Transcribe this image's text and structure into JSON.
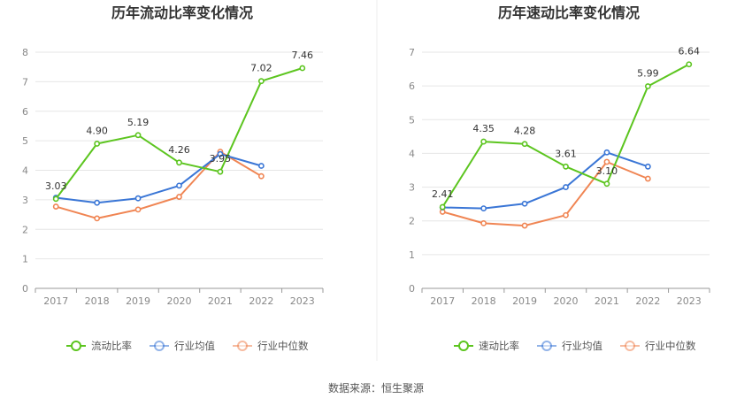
{
  "source_label": "数据来源：恒生聚源",
  "chart_data": [
    {
      "type": "line",
      "title": "历年流动比率变化情况",
      "categories": [
        "2017",
        "2018",
        "2019",
        "2020",
        "2021",
        "2022",
        "2023"
      ],
      "ylim": [
        0,
        8
      ],
      "yticks": [
        0,
        1,
        2,
        3,
        4,
        5,
        6,
        7,
        8
      ],
      "grid": true,
      "legend_position": "bottom",
      "series": [
        {
          "name": "流动比率",
          "color": "#5cc51f",
          "values": [
            3.03,
            4.9,
            5.19,
            4.26,
            3.95,
            7.02,
            7.46
          ],
          "labels": [
            "3.03",
            "4.90",
            "5.19",
            "4.26",
            "3.95",
            "7.02",
            "7.46"
          ]
        },
        {
          "name": "行业均值",
          "color": "#3a76d6",
          "values": [
            3.07,
            2.9,
            3.05,
            3.48,
            4.55,
            4.15,
            null
          ]
        },
        {
          "name": "行业中位数",
          "color": "#f08553",
          "values": [
            2.77,
            2.37,
            2.67,
            3.1,
            4.63,
            3.8,
            null
          ]
        }
      ]
    },
    {
      "type": "line",
      "title": "历年速动比率变化情况",
      "categories": [
        "2017",
        "2018",
        "2019",
        "2020",
        "2021",
        "2022",
        "2023"
      ],
      "ylim": [
        0,
        7
      ],
      "yticks": [
        0,
        1,
        2,
        3,
        4,
        5,
        6,
        7
      ],
      "grid": true,
      "legend_position": "bottom",
      "series": [
        {
          "name": "速动比率",
          "color": "#5cc51f",
          "values": [
            2.41,
            4.35,
            4.28,
            3.61,
            3.1,
            5.99,
            6.64
          ],
          "labels": [
            "2.41",
            "4.35",
            "4.28",
            "3.61",
            "3.10",
            "5.99",
            "6.64"
          ]
        },
        {
          "name": "行业均值",
          "color": "#3a76d6",
          "values": [
            2.4,
            2.37,
            2.51,
            3.0,
            4.03,
            3.61,
            null
          ]
        },
        {
          "name": "行业中位数",
          "color": "#f08553",
          "values": [
            2.27,
            1.93,
            1.86,
            2.17,
            3.75,
            3.25,
            null
          ]
        }
      ]
    }
  ]
}
